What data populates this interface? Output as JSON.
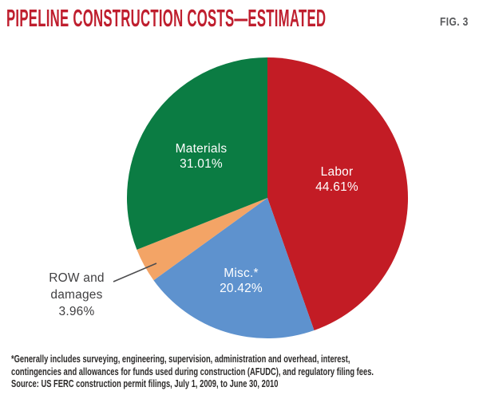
{
  "header": {
    "title": "PIPELINE CONSTRUCTION COSTS—ESTIMATED",
    "figure_label": "FIG. 3",
    "title_color": "#bf1e2e",
    "figure_label_color": "#58595b"
  },
  "chart_data": {
    "type": "pie",
    "title": "Pipeline construction costs—estimated",
    "unit": "percent",
    "direction": "clockwise",
    "start_angle_deg": 0,
    "background_color": "#ffffff",
    "slices": [
      {
        "label": "Labor",
        "value": 44.61,
        "display_value": "44.61%",
        "color": "#c31c25",
        "label_color": "#ffffff",
        "label_position": "inside"
      },
      {
        "label": "Misc.*",
        "value": 20.42,
        "display_value": "20.42%",
        "color": "#5e92ce",
        "label_color": "#ffffff",
        "label_position": "inside"
      },
      {
        "label": "ROW and damages",
        "value": 3.96,
        "display_value": "3.96%",
        "color": "#f3a466",
        "label_color": "#414042",
        "label_position": "outside-left"
      },
      {
        "label": "Materials",
        "value": 31.01,
        "display_value": "31.01%",
        "color": "#0b7c43",
        "label_color": "#ffffff",
        "label_position": "inside"
      }
    ]
  },
  "footnote": {
    "lines": [
      "*Generally includes surveying, engineering, supervision, administration and overhead, interest,",
      "contingencies and allowances for funds used during construction (AFUDC), and regulatory filing fees.",
      "Source: US FERC construction permit filings, July 1, 2009, to June 30, 2010"
    ]
  }
}
